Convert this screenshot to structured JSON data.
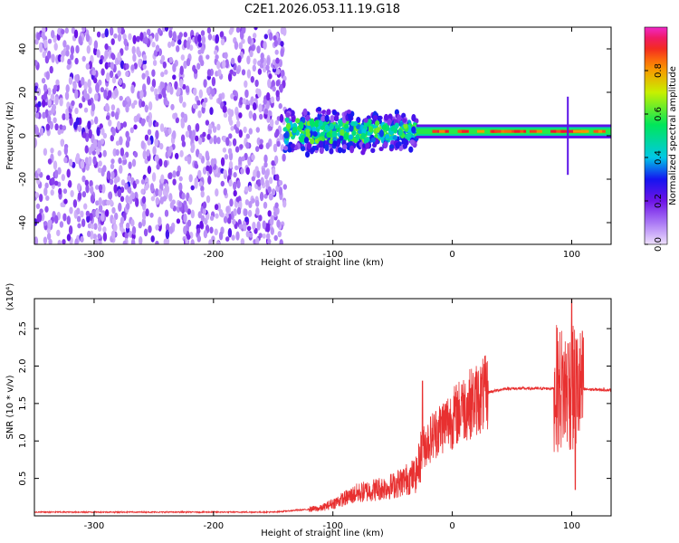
{
  "title": "C2E1.2026.053.11.19.G18",
  "chart_data": [
    {
      "type": "heatmap",
      "xlabel": "Height of straight line (km)",
      "ylabel": "Frequency (Hz)",
      "xlim": [
        -350,
        133
      ],
      "ylim": [
        -50,
        50
      ],
      "x_ticks": [
        -300,
        -200,
        -100,
        0,
        100
      ],
      "x_tick_labels": [
        "-300",
        "-200",
        "-100",
        "0",
        "100"
      ],
      "y_ticks": [
        40,
        20,
        0,
        -20,
        -40
      ],
      "y_tick_labels": [
        "40",
        "20",
        "0",
        "-20",
        "-40"
      ],
      "colorbar": {
        "label": "Normalized spectral amplitude",
        "range": [
          0,
          1
        ],
        "ticks": [
          0.0,
          0.2,
          0.4,
          0.6,
          0.8
        ],
        "tick_labels": [
          "0.0",
          "0.2",
          "0.4",
          "0.6",
          "0.8"
        ]
      },
      "regions": [
        {
          "name": "noise",
          "x_range": [
            -350,
            -140
          ],
          "freq_range": [
            -50,
            50
          ],
          "amplitude": 0.15
        },
        {
          "name": "transition",
          "x_range": [
            -140,
            -30
          ],
          "freq_center": 2,
          "freq_halfwidth": 12,
          "amplitude": 0.45
        },
        {
          "name": "tone",
          "x_range": [
            -30,
            133
          ],
          "freq_center": 2,
          "freq_halfwidth": 3,
          "amplitude": 0.85
        }
      ]
    },
    {
      "type": "line",
      "xlabel": "Height of straight line (km)",
      "ylabel": "SNR (10 * v/v)",
      "y_multiplier": "(x10⁴)",
      "xlim": [
        -350,
        133
      ],
      "ylim": [
        0,
        2.9
      ],
      "x_ticks": [
        -300,
        -200,
        -100,
        0,
        100
      ],
      "x_tick_labels": [
        "-300",
        "-200",
        "-100",
        "0",
        "100"
      ],
      "y_ticks": [
        0.5,
        1.0,
        1.5,
        2.0,
        2.5
      ],
      "y_tick_labels": [
        "0.5",
        "1.0",
        "1.5",
        "2.0",
        "2.5"
      ],
      "series_color": "#e83030",
      "anchors": [
        {
          "x": -350,
          "y": 0.05
        },
        {
          "x": -150,
          "y": 0.05
        },
        {
          "x": -110,
          "y": 0.1
        },
        {
          "x": -80,
          "y": 0.3
        },
        {
          "x": -50,
          "y": 0.4
        },
        {
          "x": -30,
          "y": 0.55
        },
        {
          "x": -25,
          "y": 0.9
        },
        {
          "x": -15,
          "y": 1.1
        },
        {
          "x": -5,
          "y": 1.25
        },
        {
          "x": 0,
          "y": 1.3
        },
        {
          "x": 10,
          "y": 1.45
        },
        {
          "x": 20,
          "y": 1.55
        },
        {
          "x": 30,
          "y": 1.65
        },
        {
          "x": 45,
          "y": 1.7
        },
        {
          "x": 90,
          "y": 1.7
        },
        {
          "x": 133,
          "y": 1.68
        }
      ],
      "spikes": [
        {
          "x": -25,
          "y": 1.8
        },
        {
          "x": 8,
          "y": 1.75
        },
        {
          "x": 100,
          "y": 2.9
        },
        {
          "x": 103,
          "y": 0.35
        },
        {
          "x": 97,
          "y": 2.3
        }
      ]
    }
  ]
}
